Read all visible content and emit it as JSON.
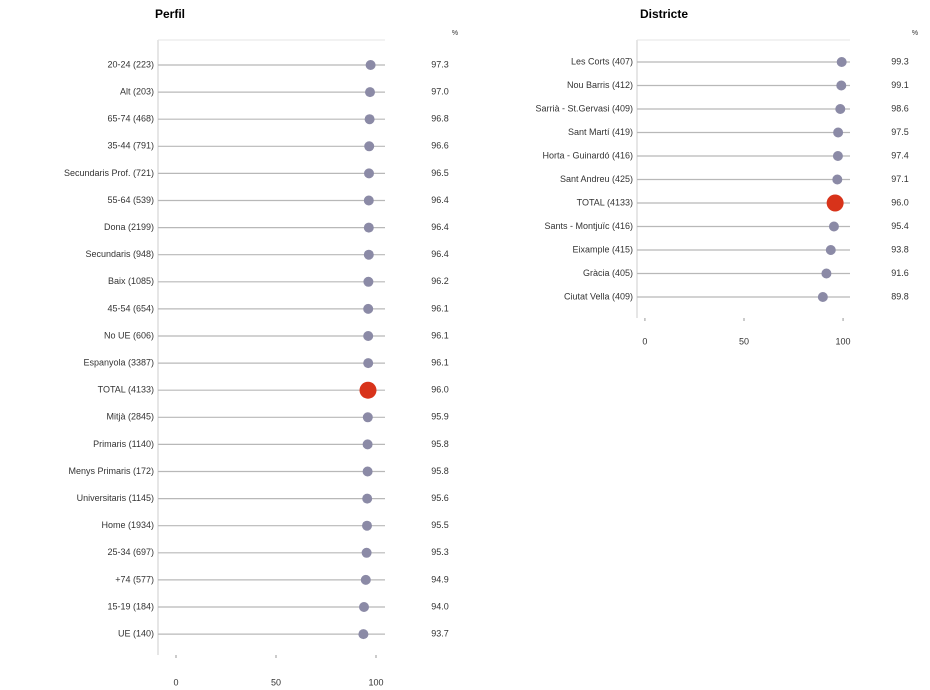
{
  "chart_data": [
    {
      "type": "dot",
      "title": "Perfil",
      "value_header": "%",
      "categories": [
        "20-24 (223)",
        "Alt (203)",
        "65-74 (468)",
        "35-44 (791)",
        "Secundaris Prof. (721)",
        "55-64 (539)",
        "Dona (2199)",
        "Secundaris (948)",
        "Baix (1085)",
        "45-54 (654)",
        "No UE (606)",
        "Espanyola (3387)",
        "TOTAL (4133)",
        "Mitjà (2845)",
        "Primaris (1140)",
        "Menys Primaris (172)",
        "Universitaris (1145)",
        "Home (1934)",
        "25-34 (697)",
        "+74 (577)",
        "15-19 (184)",
        "UE (140)"
      ],
      "values": [
        97.3,
        97.0,
        96.8,
        96.6,
        96.5,
        96.4,
        96.4,
        96.4,
        96.2,
        96.1,
        96.1,
        96.1,
        96.0,
        95.9,
        95.8,
        95.8,
        95.6,
        95.5,
        95.3,
        94.9,
        94.0,
        93.7
      ],
      "value_labels": [
        "97.3",
        "97.0",
        "96.8",
        "96.6",
        "96.5",
        "96.4",
        "96.4",
        "96.4",
        "96.2",
        "96.1",
        "96.1",
        "96.1",
        "96.0",
        "95.9",
        "95.8",
        "95.8",
        "95.6",
        "95.5",
        "95.3",
        "94.9",
        "94.0",
        "93.7"
      ],
      "color": "#8b8aa6",
      "colors": [
        "#8b8aa6",
        "#8b8aa6",
        "#8b8aa6",
        "#8b8aa6",
        "#8b8aa6",
        "#8b8aa6",
        "#8b8aa6",
        "#8b8aa6",
        "#8b8aa6",
        "#8b8aa6",
        "#8b8aa6",
        "#8b8aa6",
        "#d8331a",
        "#8b8aa6",
        "#8b8aa6",
        "#8b8aa6",
        "#8b8aa6",
        "#8b8aa6",
        "#8b8aa6",
        "#8b8aa6",
        "#8b8aa6",
        "#8b8aa6"
      ],
      "xlim": [
        -9,
        104.5
      ],
      "xticks": [
        0,
        50,
        100
      ]
    },
    {
      "type": "dot",
      "title": "Districte",
      "value_header": "%",
      "categories": [
        "Les Corts (407)",
        "Nou Barris (412)",
        "Sarrià - St.Gervasi (409)",
        "Sant Martí (419)",
        "Horta - Guinardó (416)",
        "Sant Andreu (425)",
        "TOTAL (4133)",
        "Sants - Montjuïc (416)",
        "Eixample (415)",
        "Gràcia (405)",
        "Ciutat Vella (409)"
      ],
      "values": [
        99.3,
        99.1,
        98.6,
        97.5,
        97.4,
        97.1,
        96.0,
        95.4,
        93.8,
        91.6,
        89.8
      ],
      "value_labels": [
        "99.3",
        "99.1",
        "98.6",
        "97.5",
        "97.4",
        "97.1",
        "96.0",
        "95.4",
        "93.8",
        "91.6",
        "89.8"
      ],
      "color": "#8b8aa6",
      "colors": [
        "#8b8aa6",
        "#8b8aa6",
        "#8b8aa6",
        "#8b8aa6",
        "#8b8aa6",
        "#8b8aa6",
        "#d8331a",
        "#8b8aa6",
        "#8b8aa6",
        "#8b8aa6",
        "#8b8aa6"
      ],
      "xlim": [
        -4,
        103.5
      ],
      "xticks": [
        0,
        50,
        100
      ]
    }
  ]
}
